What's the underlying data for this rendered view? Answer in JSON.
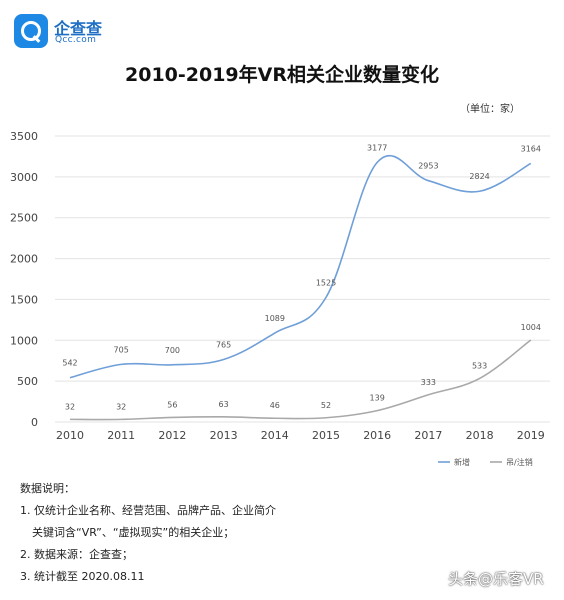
{
  "brand": {
    "name": "企查查",
    "domain": "Qcc.com",
    "accent": "#1e88e5"
  },
  "chart_data": {
    "type": "line",
    "title": "2010-2019年VR相关企业数量变化",
    "unit": "（单位：家）",
    "categories": [
      "2010",
      "2011",
      "2012",
      "2013",
      "2014",
      "2015",
      "2016",
      "2017",
      "2018",
      "2019"
    ],
    "series": [
      {
        "name": "新增",
        "color": "#6f9fd8",
        "values": [
          542,
          705,
          700,
          765,
          1089,
          1525,
          3177,
          2953,
          2824,
          3164
        ]
      },
      {
        "name": "吊/注销",
        "color": "#a9a9a9",
        "values": [
          32,
          32,
          56,
          63,
          46,
          52,
          139,
          333,
          533,
          1004
        ]
      }
    ],
    "ylim": [
      0,
      3500
    ],
    "yticks": [
      "0",
      "500",
      "1000",
      "1500",
      "2000",
      "2500",
      "3000",
      "3500"
    ],
    "grid": "horizontal",
    "legend": "bottom-right"
  },
  "notes": {
    "heading": "数据说明：",
    "line1": "1. 仅统计企业名称、经营范围、品牌产品、企业简介",
    "line1b": "关键词含“VR”、“虚拟现实”的相关企业；",
    "line2": "2. 数据来源：企查查；",
    "line3": "3. 统计截至 2020.08.11"
  },
  "watermark": "头条@乐客VR"
}
